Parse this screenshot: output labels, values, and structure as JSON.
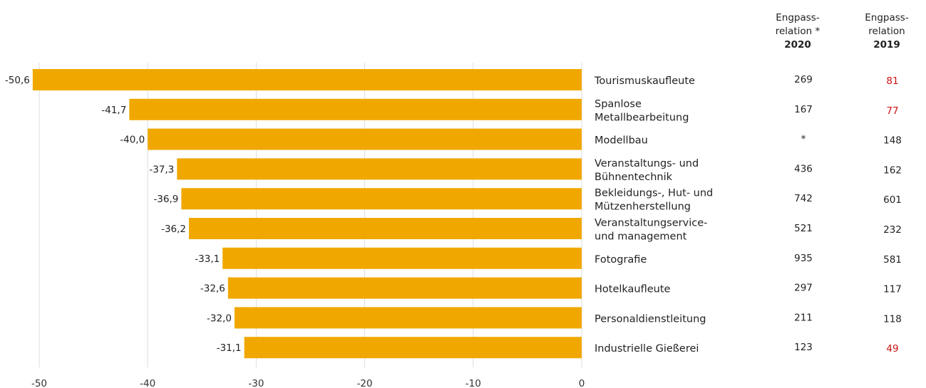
{
  "chart_data": {
    "type": "bar",
    "orientation": "horizontal",
    "categories": [
      "Tourismuskaufleute",
      "Spanlose Metallbearbeitung",
      "Modellbau",
      "Veranstaltungs- und Bühnentechnik",
      "Bekleidungs-, Hut- und Mützenherstellung",
      "Veranstaltungservice- und management",
      "Fotografie",
      "Hotelkaufleute",
      "Personaldienstleitung",
      "Industrielle Gießerei"
    ],
    "category_lines": [
      [
        "Tourismuskaufleute"
      ],
      [
        "Spanlose",
        "Metallbearbeitung"
      ],
      [
        "Modellbau"
      ],
      [
        "Veranstaltungs- und",
        "Bühnentechnik"
      ],
      [
        "Bekleidungs-, Hut- und",
        "Mützenherstellung"
      ],
      [
        "Veranstaltungservice-",
        "und management"
      ],
      [
        "Fotografie"
      ],
      [
        "Hotelkaufleute"
      ],
      [
        "Personaldienstleitung"
      ],
      [
        "Industrielle Gießerei"
      ]
    ],
    "values": [
      -50.6,
      -41.7,
      -40.0,
      -37.3,
      -36.9,
      -36.2,
      -33.1,
      -32.6,
      -32.0,
      -31.1
    ],
    "value_labels": [
      "-50,6",
      "-41,7",
      "-40,0",
      "-37,3",
      "-36,9",
      "-36,2",
      "-33,1",
      "-32,6",
      "-32,0",
      "-31,1"
    ],
    "xlim": [
      -50,
      0
    ],
    "xticks": [
      -50,
      -40,
      -30,
      -20,
      -10,
      0
    ],
    "xtick_labels": [
      "-50",
      "-40",
      "-30",
      "-20",
      "-10",
      "0"
    ],
    "grid": true,
    "bar_color": "#F0A800",
    "grid_color": "#dddddd",
    "table": {
      "columns": [
        {
          "title": "Engpass-\nrelation *",
          "year": "2020"
        },
        {
          "title": "Engpass-\nrelation",
          "year": "2019"
        }
      ],
      "values_2020": [
        "269",
        "167",
        "*",
        "436",
        "742",
        "521",
        "935",
        "297",
        "211",
        "123"
      ],
      "values_2019": [
        "81",
        "77",
        "148",
        "162",
        "601",
        "232",
        "581",
        "117",
        "118",
        "49"
      ],
      "highlight_2019": [
        true,
        true,
        false,
        false,
        false,
        false,
        false,
        false,
        false,
        true
      ],
      "highlight_color": "#cc1111",
      "default_color": "#222222"
    }
  }
}
